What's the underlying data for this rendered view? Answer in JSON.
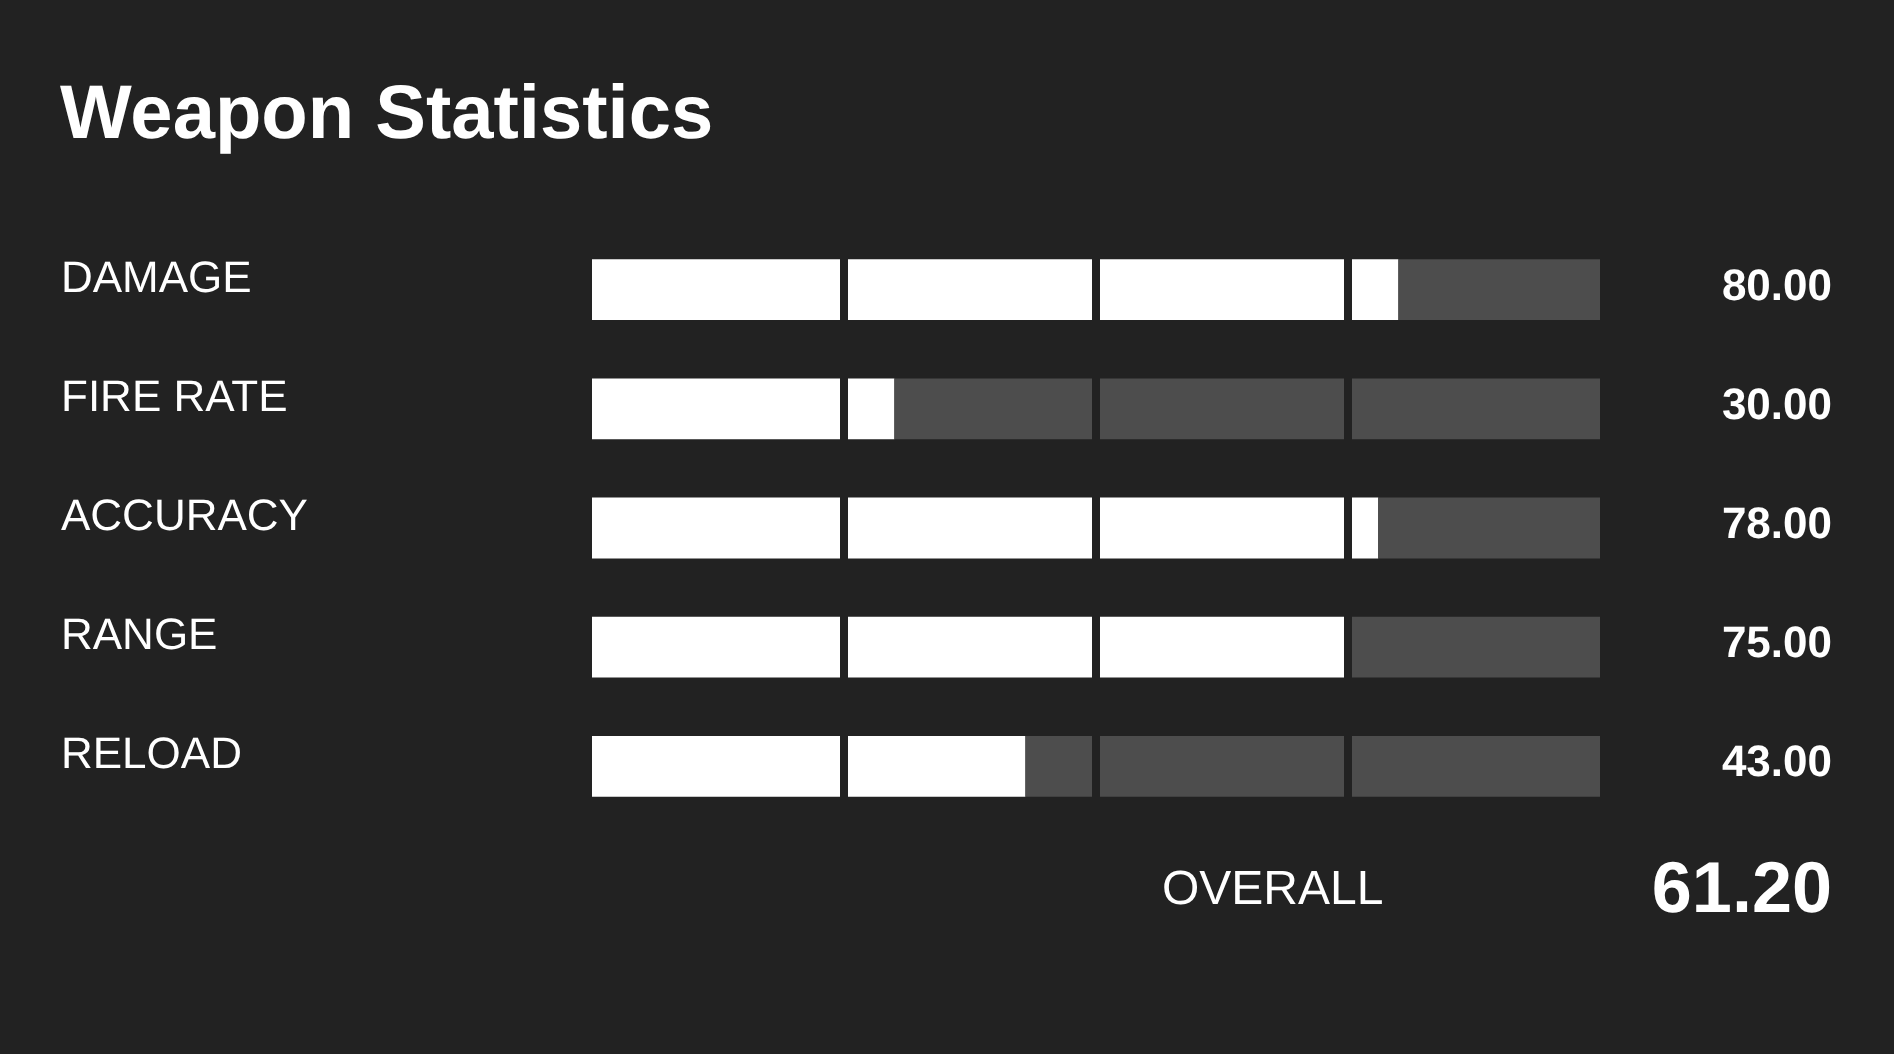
{
  "chart_data": {
    "type": "bar",
    "orientation": "horizontal",
    "stacked": true,
    "title": "Weapon Statistics",
    "categories": [
      "DAMAGE",
      "FIRE RATE",
      "ACCURACY",
      "RANGE",
      "RELOAD"
    ],
    "series": [
      {
        "color": "#ffffff",
        "values": [
          80,
          30,
          78,
          75,
          43
        ],
        "value_labels": [
          "80.00",
          "30.00",
          "78.00",
          "75.00",
          "43.00"
        ]
      },
      {
        "color": "#4d4d4d",
        "values": [
          20,
          70,
          22,
          25,
          57
        ]
      }
    ],
    "xlim": [
      0,
      100
    ],
    "xticks": [
      {
        "value": 25,
        "label": null
      },
      {
        "value": 50,
        "label": null
      },
      {
        "value": 75,
        "label": null
      }
    ],
    "grid": "x",
    "tick_labels": "y",
    "annotations": [
      "OVERALL",
      "61.20"
    ]
  }
}
